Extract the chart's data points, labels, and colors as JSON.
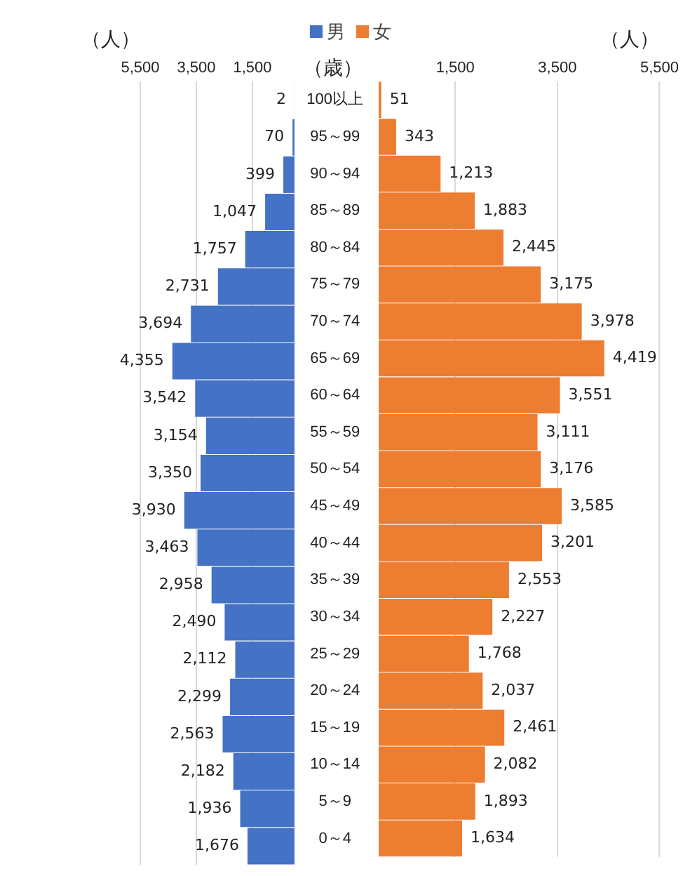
{
  "chart_data": [
    {
      "type": "bar",
      "orientation": "horizontal",
      "xlabel": "（人）",
      "categories": [
        null,
        null,
        null,
        null,
        null,
        null,
        null,
        null,
        null,
        null,
        null,
        null,
        null,
        null,
        null,
        null,
        null,
        null,
        null,
        null,
        null
      ],
      "series": [
        {
          "name": "男",
          "color": "#4472c4",
          "values": [
            2,
            70,
            399,
            1047,
            1757,
            2731,
            3694,
            4355,
            3542,
            3154,
            3350,
            3930,
            3463,
            2958,
            2490,
            2112,
            2299,
            2563,
            2182,
            1936,
            1676
          ],
          "value_labels": [
            "2",
            "70",
            "399",
            "1,047",
            "1,757",
            "2,731",
            "3,694",
            "4,355",
            "3,542",
            "3,154",
            "3,350",
            "3,930",
            "3,463",
            "2,958",
            "2,490",
            "2,112",
            "2,299",
            "2,563",
            "2,182",
            "1,936",
            "1,676"
          ]
        }
      ],
      "xlim": [
        5500,
        0
      ],
      "xticks": [
        {
          "value": 5500,
          "label": "5,500"
        },
        {
          "value": 3500,
          "label": "3,500"
        },
        {
          "value": 1500,
          "label": "1,500"
        }
      ],
      "grid": "x",
      "legend": "top",
      "tick_labels": "x"
    },
    {
      "type": "bar",
      "orientation": "horizontal",
      "xlabel": "（人）",
      "ylabel": "（歳）",
      "categories": [
        "100以上",
        "95～99",
        "90～94",
        "85～89",
        "80～84",
        "75～79",
        "70～74",
        "65～69",
        "60～64",
        "55～59",
        "50～54",
        "45～49",
        "40～44",
        "35～39",
        "30～34",
        "25～29",
        "20～24",
        "15～19",
        "10～14",
        "5～9",
        "0～4"
      ],
      "series": [
        {
          "name": "女",
          "color": "#ed7d31",
          "values": [
            51,
            343,
            1213,
            1883,
            2445,
            3175,
            3978,
            4419,
            3551,
            3111,
            3176,
            3585,
            3201,
            2553,
            2227,
            1768,
            2037,
            2461,
            2082,
            1893,
            1634
          ],
          "value_labels": [
            "51",
            "343",
            "1,213",
            "1,883",
            "2,445",
            "3,175",
            "3,978",
            "4,419",
            "3,551",
            "3,111",
            "3,176",
            "3,585",
            "3,201",
            "2,553",
            "2,227",
            "1,768",
            "2,037",
            "2,461",
            "2,082",
            "1,893",
            "1,634"
          ]
        }
      ],
      "xlim": [
        0,
        5500
      ],
      "xticks": [
        {
          "value": 1500,
          "label": "1,500"
        },
        {
          "value": 3500,
          "label": "3,500"
        },
        {
          "value": 5500,
          "label": "5,500"
        }
      ],
      "grid": "x",
      "legend": "top"
    }
  ]
}
